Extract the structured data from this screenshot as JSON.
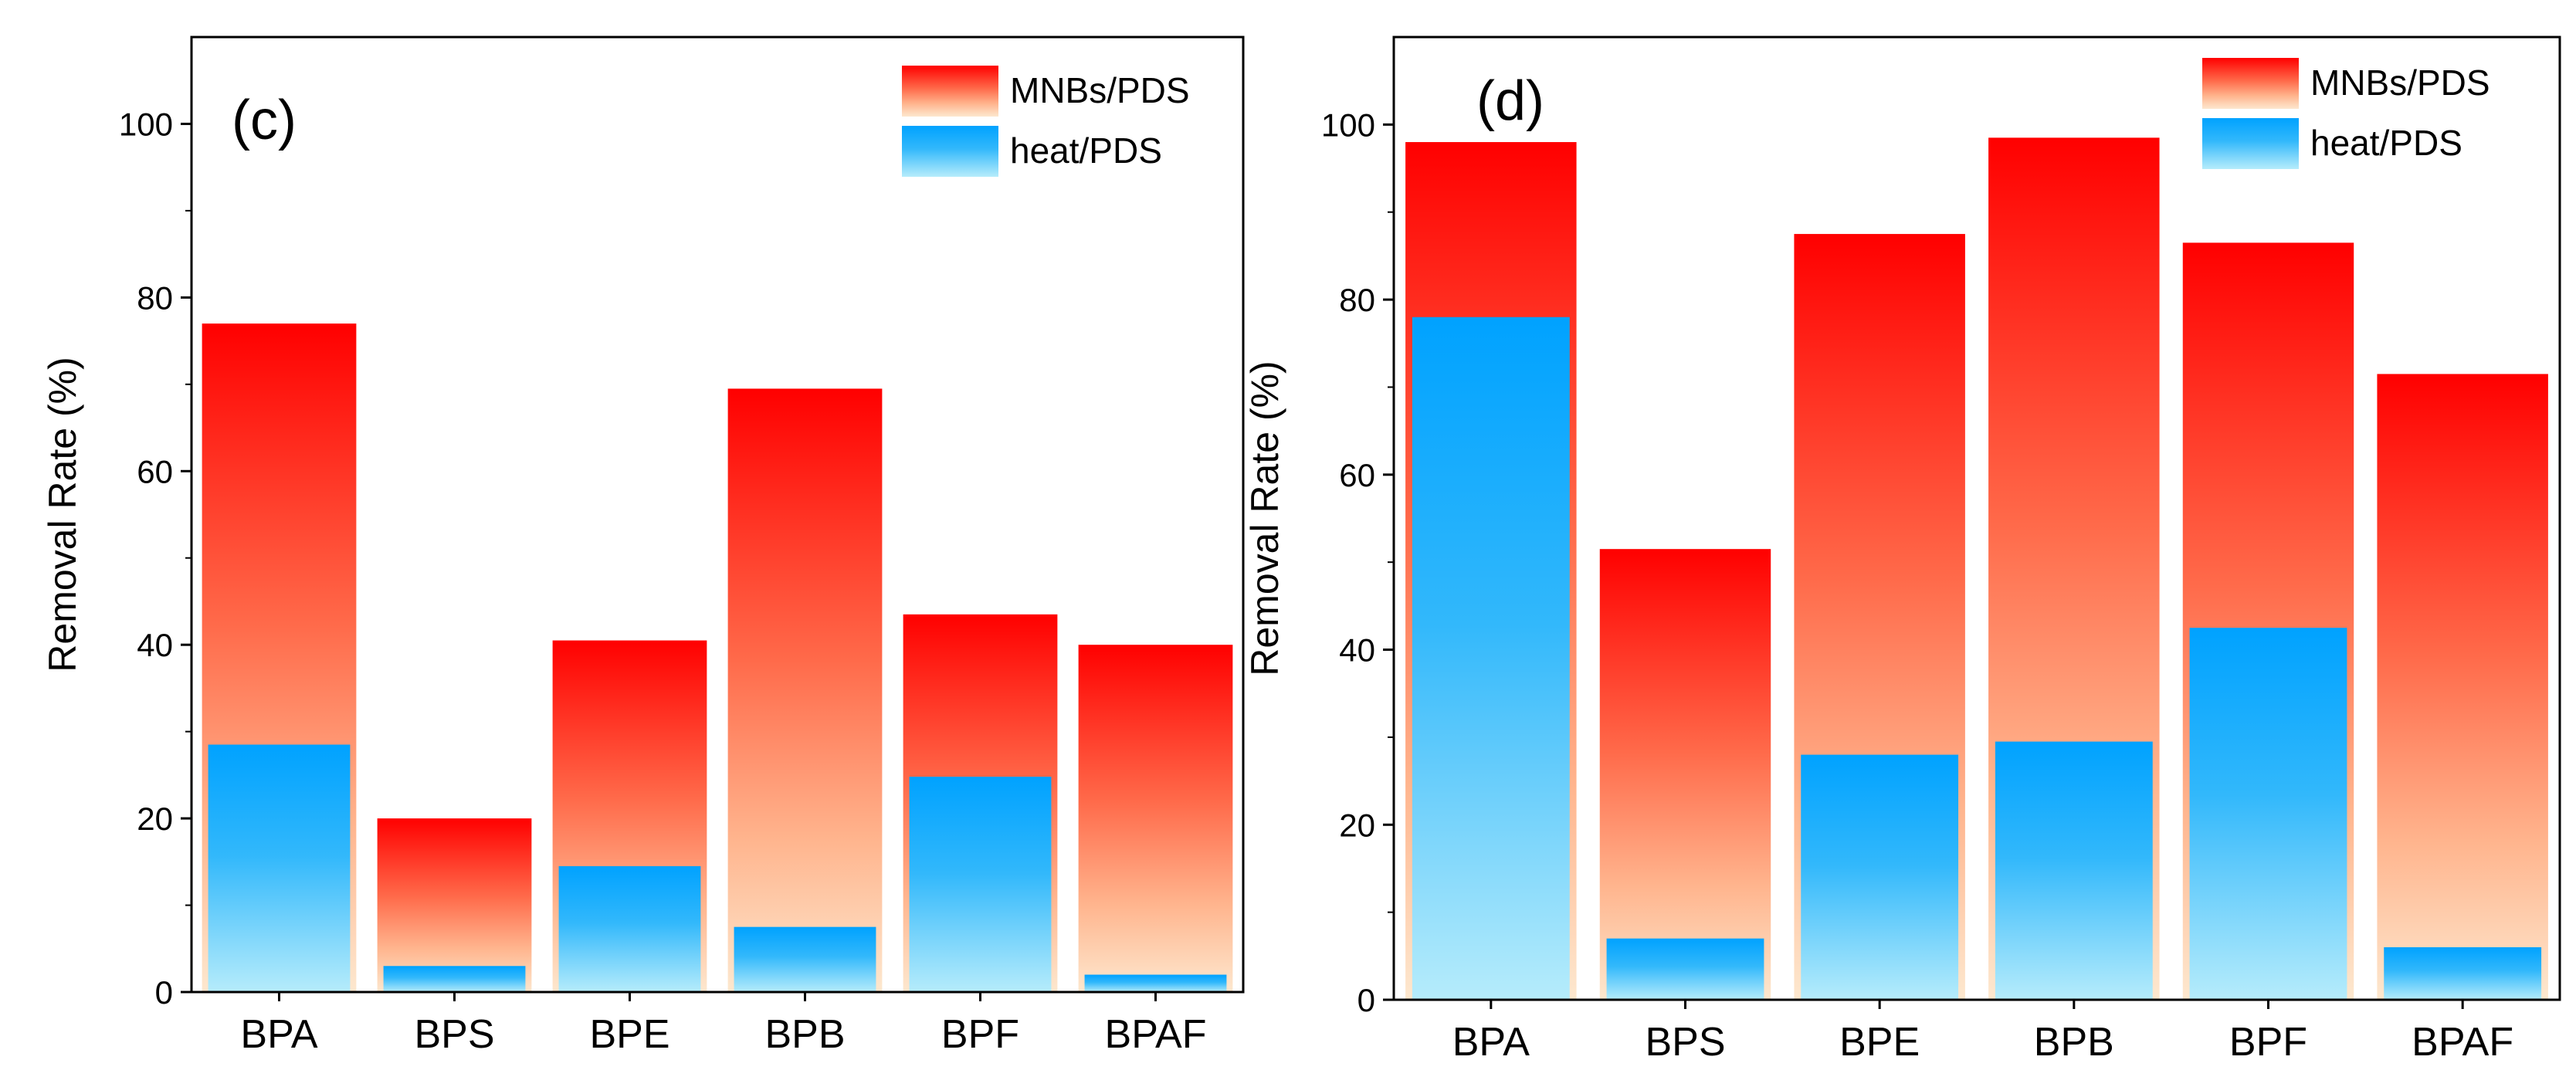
{
  "chart_data": [
    {
      "type": "bar",
      "panel_label": "(c)",
      "categories": [
        "BPA",
        "BPS",
        "BPE",
        "BPB",
        "BPF",
        "BPAF"
      ],
      "series": [
        {
          "name": "MNBs/PDS",
          "values": [
            77,
            20,
            40.5,
            69.5,
            43.5,
            40
          ],
          "color_top": "#ff0000",
          "color_bottom": "#fde8cf"
        },
        {
          "name": "heat/PDS",
          "values": [
            28.5,
            3,
            14.5,
            7.5,
            24.8,
            2
          ],
          "color_top": "#00a2ff",
          "color_bottom": "#b6ecfb"
        }
      ],
      "ylabel": "Removal Rate (%)",
      "ylim": [
        0,
        110
      ],
      "yticks": [
        0,
        20,
        40,
        60,
        80,
        100
      ],
      "grid": false,
      "legend_position": "top-right"
    },
    {
      "type": "bar",
      "panel_label": "(d)",
      "categories": [
        "BPA",
        "BPS",
        "BPE",
        "BPB",
        "BPF",
        "BPAF"
      ],
      "series": [
        {
          "name": "MNBs/PDS",
          "values": [
            98,
            51.5,
            87.5,
            98.5,
            86.5,
            71.5
          ],
          "color_top": "#ff0000",
          "color_bottom": "#fde8cf"
        },
        {
          "name": "heat/PDS",
          "values": [
            78,
            7,
            28,
            29.5,
            42.5,
            6
          ],
          "color_top": "#00a2ff",
          "color_bottom": "#b6ecfb"
        }
      ],
      "ylabel": "Removal Rate (%)",
      "ylim": [
        0,
        110
      ],
      "yticks": [
        0,
        20,
        40,
        60,
        80,
        100
      ],
      "grid": false,
      "legend_position": "top-right"
    }
  ]
}
